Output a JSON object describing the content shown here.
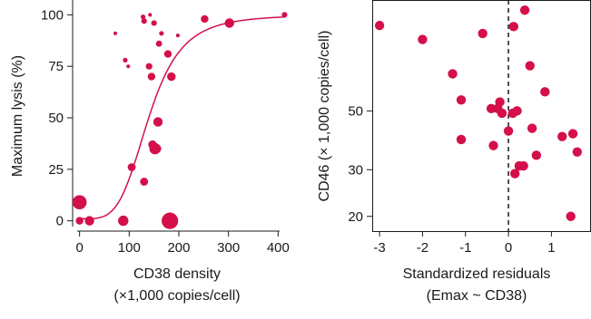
{
  "colors": {
    "point": "#d4104a",
    "curve": "#d4104a",
    "axis": "#1a1a1a"
  },
  "chart_data": [
    {
      "type": "scatter",
      "title": "",
      "xlabel": "CD38 density",
      "xlabel2": "(×1,000 copies/cell)",
      "ylabel": "Maximum lysis (%)",
      "xlim": [
        -14,
        425
      ],
      "ylim": [
        -5,
        105
      ],
      "xticks": [
        0,
        100,
        200,
        300,
        400
      ],
      "yticks": [
        0,
        25,
        50,
        75,
        100
      ],
      "grid": false,
      "fit_curve": {
        "model": "sigmoid",
        "top": 100,
        "bottom": 1,
        "ec50": 140,
        "hill": 4.2
      },
      "points": [
        {
          "x": 0,
          "y": 9,
          "size": 3
        },
        {
          "x": 0,
          "y": 0,
          "size": 1.6
        },
        {
          "x": 20,
          "y": 0,
          "size": 2
        },
        {
          "x": 72,
          "y": 91,
          "size": 0.8
        },
        {
          "x": 88,
          "y": 0,
          "size": 2.2
        },
        {
          "x": 92,
          "y": 78,
          "size": 1
        },
        {
          "x": 98,
          "y": 75,
          "size": 0.8
        },
        {
          "x": 105,
          "y": 26,
          "size": 1.7
        },
        {
          "x": 128,
          "y": 99,
          "size": 1
        },
        {
          "x": 130,
          "y": 97,
          "size": 1.2
        },
        {
          "x": 130,
          "y": 19,
          "size": 1.7
        },
        {
          "x": 140,
          "y": 75,
          "size": 1.4
        },
        {
          "x": 142,
          "y": 100,
          "size": 0.8
        },
        {
          "x": 145,
          "y": 70,
          "size": 1.6
        },
        {
          "x": 147,
          "y": 37,
          "size": 1.8
        },
        {
          "x": 150,
          "y": 96,
          "size": 1.2
        },
        {
          "x": 152,
          "y": 35,
          "size": 2.4
        },
        {
          "x": 155,
          "y": 35,
          "size": 2
        },
        {
          "x": 158,
          "y": 48,
          "size": 2
        },
        {
          "x": 160,
          "y": 86,
          "size": 1.3
        },
        {
          "x": 165,
          "y": 91,
          "size": 1
        },
        {
          "x": 178,
          "y": 81,
          "size": 1.6
        },
        {
          "x": 182,
          "y": 0,
          "size": 3.5
        },
        {
          "x": 185,
          "y": 70,
          "size": 1.8
        },
        {
          "x": 198,
          "y": 90,
          "size": 0.8
        },
        {
          "x": 250,
          "y": 98,
          "size": 1
        },
        {
          "x": 252,
          "y": 98,
          "size": 1.6
        },
        {
          "x": 302,
          "y": 96,
          "size": 2
        },
        {
          "x": 413,
          "y": 100,
          "size": 1.2
        }
      ]
    },
    {
      "type": "scatter",
      "title": "",
      "xlabel": "Standardized residuals",
      "xlabel2": "(Emax ~ CD38)",
      "ylabel": "CD46 (× 1,000 copies/cell)",
      "xlim": [
        -3.15,
        1.9
      ],
      "ylim": [
        17.6,
        130
      ],
      "y_scale": "log",
      "xticks": [
        -3,
        -2,
        -1,
        0,
        1
      ],
      "yticks": [
        20,
        30,
        50
      ],
      "reference_line_x": 0,
      "grid": false,
      "points": [
        {
          "x": -3.0,
          "y": 105
        },
        {
          "x": -2.0,
          "y": 93
        },
        {
          "x": -1.3,
          "y": 69
        },
        {
          "x": -1.1,
          "y": 55
        },
        {
          "x": -1.1,
          "y": 39
        },
        {
          "x": -0.6,
          "y": 98
        },
        {
          "x": -0.4,
          "y": 51
        },
        {
          "x": -0.35,
          "y": 37
        },
        {
          "x": -0.25,
          "y": 51
        },
        {
          "x": -0.2,
          "y": 54
        },
        {
          "x": -0.15,
          "y": 49
        },
        {
          "x": 0.0,
          "y": 42
        },
        {
          "x": 0.1,
          "y": 49
        },
        {
          "x": 0.12,
          "y": 104
        },
        {
          "x": 0.15,
          "y": 29
        },
        {
          "x": 0.2,
          "y": 50
        },
        {
          "x": 0.25,
          "y": 31
        },
        {
          "x": 0.35,
          "y": 31
        },
        {
          "x": 0.38,
          "y": 120
        },
        {
          "x": 0.5,
          "y": 74
        },
        {
          "x": 0.55,
          "y": 43
        },
        {
          "x": 0.65,
          "y": 34
        },
        {
          "x": 0.85,
          "y": 59
        },
        {
          "x": 1.25,
          "y": 40
        },
        {
          "x": 1.45,
          "y": 20
        },
        {
          "x": 1.5,
          "y": 41
        },
        {
          "x": 1.6,
          "y": 35
        }
      ]
    }
  ]
}
